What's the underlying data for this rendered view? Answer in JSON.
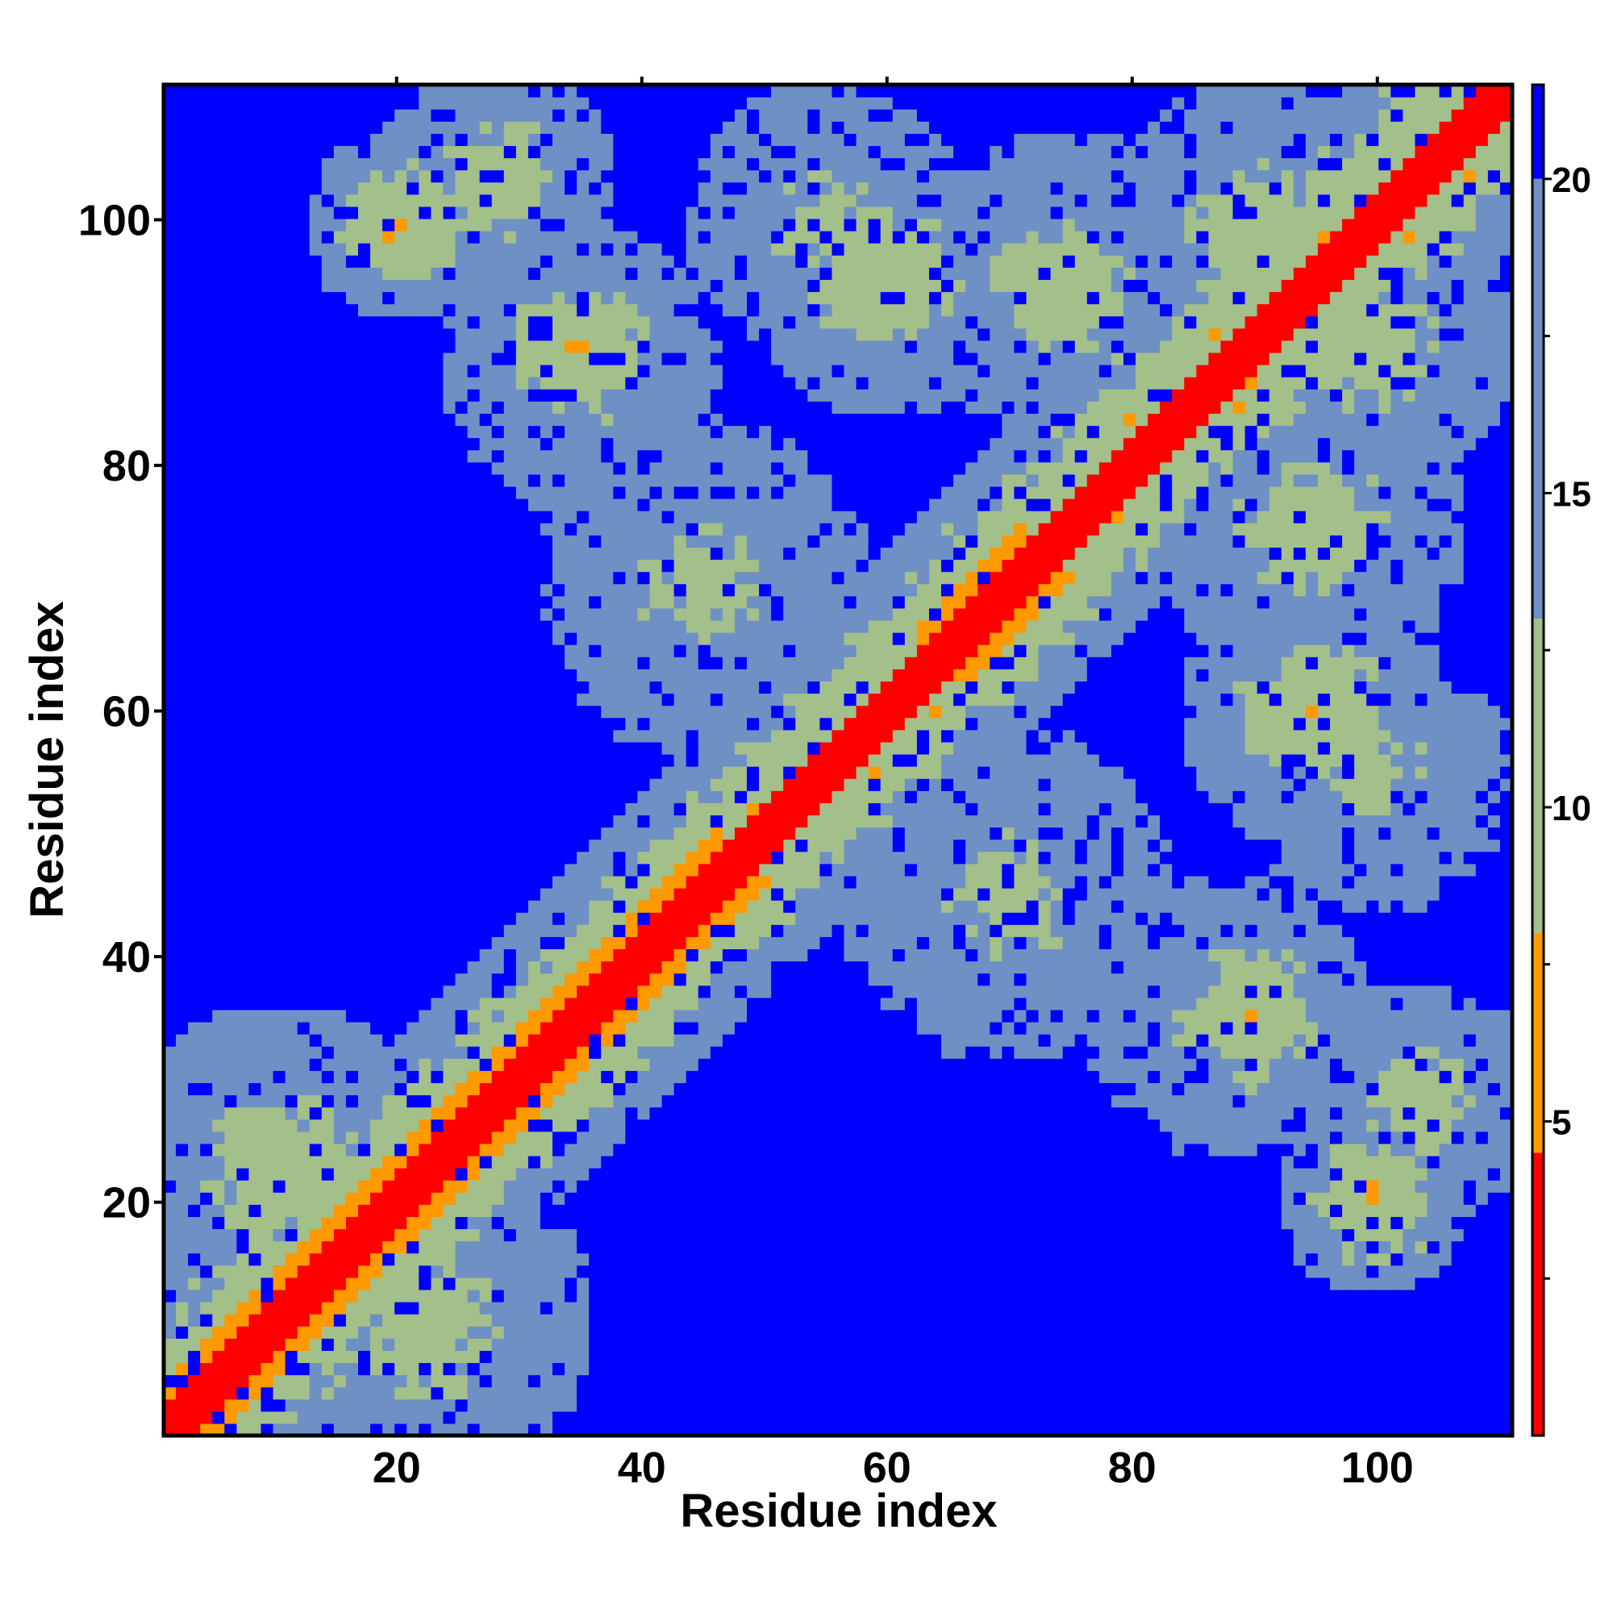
{
  "chart_data": {
    "type": "heatmap",
    "title": "",
    "xlabel": "Residue index",
    "ylabel": "Residue index",
    "n_residues": 111,
    "xlim": [
      1,
      111
    ],
    "ylim": [
      1,
      111
    ],
    "xticks": [
      20,
      40,
      60,
      80,
      100
    ],
    "yticks": [
      20,
      40,
      60,
      80,
      100
    ],
    "xtick_labels": [
      "20",
      "40",
      "60",
      "80",
      "100"
    ],
    "ytick_labels": [
      "20",
      "40",
      "60",
      "80",
      "100"
    ],
    "colorbar": {
      "range": [
        0,
        21.5
      ],
      "ticks": [
        5,
        10,
        15,
        20
      ],
      "tick_labels": [
        "5",
        "10",
        "15",
        "20"
      ],
      "bands": [
        {
          "from": 0,
          "to": 4.5,
          "color": "#ff0000"
        },
        {
          "from": 4.5,
          "to": 8.0,
          "color": "#ff9900"
        },
        {
          "from": 8.0,
          "to": 13.0,
          "color": "#a3bf8a"
        },
        {
          "from": 13.0,
          "to": 20.0,
          "color": "#6f90c4"
        },
        {
          "from": 20.0,
          "to": 21.5,
          "color": "#0000ff"
        }
      ]
    },
    "value_description": "pairwise residue distance matrix (symmetric); diagonal ~0",
    "contact_features": [
      {
        "i": [
          1,
          111
        ],
        "j_offset": [
          0,
          3
        ],
        "value": 2
      },
      {
        "i": [
          5,
          47
        ],
        "j_offset": [
          3,
          5
        ],
        "value": 6
      },
      {
        "i": [
          47,
          55
        ],
        "j": [
          55,
          63
        ],
        "value": 6
      },
      {
        "i": [
          51,
          60
        ],
        "j": [
          48,
          55
        ],
        "value": 6
      },
      {
        "i": [
          87,
          100
        ],
        "j": [
          92,
          100
        ],
        "value": 6
      },
      {
        "i": [
          44,
          55
        ],
        "j": [
          96,
          105
        ],
        "value": 6
      },
      {
        "i": [
          95,
          105
        ],
        "j": [
          43,
          56
        ],
        "value": 6
      },
      {
        "i": [
          20,
          22
        ],
        "j": [
          103,
          111
        ],
        "value": 6
      },
      {
        "i": [
          1,
          12
        ],
        "j": [
          1,
          12
        ],
        "value": 7
      },
      {
        "i": [
          106,
          110
        ],
        "j": [
          18,
          21
        ],
        "value": 6
      }
    ]
  }
}
